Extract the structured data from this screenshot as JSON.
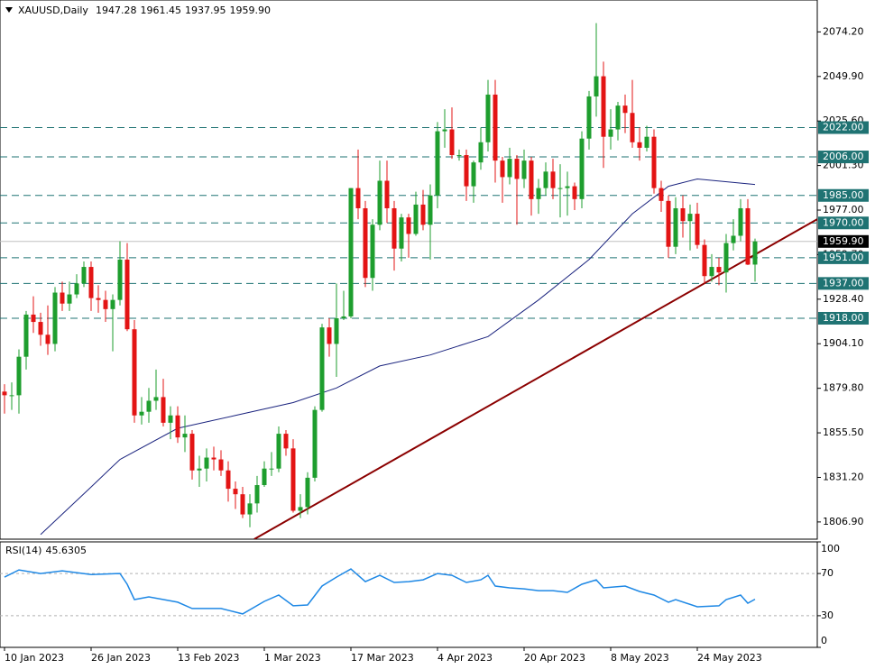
{
  "chart_data": {
    "type": "candlestick",
    "title": "XAUUSD,Daily",
    "title_values": [
      "1947.28",
      "1961.45",
      "1937.95",
      "1959.90"
    ],
    "categories": [
      "10 Jan 2023",
      null,
      null,
      null,
      null,
      null,
      null,
      null,
      null,
      null,
      null,
      null,
      "26 Jan 2023",
      null,
      null,
      null,
      null,
      null,
      null,
      null,
      null,
      null,
      null,
      null,
      "13 Feb 2023",
      null,
      null,
      null,
      null,
      null,
      null,
      null,
      null,
      null,
      null,
      null,
      "1 Mar 2023",
      null,
      null,
      null,
      null,
      null,
      null,
      null,
      null,
      null,
      null,
      null,
      "17 Mar 2023",
      null,
      null,
      null,
      null,
      null,
      null,
      null,
      null,
      null,
      null,
      null,
      "4 Apr 2023",
      null,
      null,
      null,
      null,
      null,
      null,
      null,
      null,
      null,
      null,
      null,
      "20 Apr 2023",
      null,
      null,
      null,
      null,
      null,
      null,
      null,
      null,
      null,
      null,
      null,
      "8 May 2023",
      null,
      null,
      null,
      null,
      null,
      null,
      null,
      null,
      null,
      null,
      null,
      "24 May 2023",
      null,
      null,
      null,
      null,
      null,
      null,
      null,
      null
    ],
    "open": [
      1878,
      1876,
      1876,
      1897,
      1920,
      1916,
      1909,
      1904,
      1932,
      1926,
      1931,
      1937,
      1946,
      1929,
      1928,
      1923,
      1928,
      1950,
      1912,
      1865,
      1867,
      1873,
      1875,
      1861,
      1865,
      1853,
      1855,
      1835,
      1836,
      1842,
      1841,
      1835,
      1825,
      1822,
      1811,
      1817,
      1827,
      1836,
      1836,
      1855,
      1847,
      1813,
      1815,
      1831,
      1868,
      1913,
      1904,
      1918,
      1919,
      1989,
      1978,
      1940,
      1969,
      1993,
      1978,
      1956,
      1973,
      1964,
      1980,
      1969,
      1985,
      2020,
      2021,
      2007,
      2007,
      1990,
      2003,
      2014,
      2040,
      2004,
      1995,
      2005,
      1994,
      2004,
      1983,
      1989,
      1998,
      1989,
      1989,
      1990,
      1983,
      2016,
      2039,
      2050,
      2017,
      2021,
      2034,
      2030,
      2014,
      2011,
      2017,
      1989,
      1982,
      1957,
      1978,
      1971,
      1975,
      1958,
      1941,
      1946,
      1943,
      1959,
      1963,
      1978,
      1947.28
    ],
    "high": [
      1882,
      1883,
      1901,
      1922,
      1930,
      1921,
      1925,
      1935,
      1938,
      1938,
      1942,
      1949,
      1949,
      1936,
      1933,
      1931,
      1960,
      1959,
      1917,
      1875,
      1880,
      1890,
      1885,
      1870,
      1870,
      1865,
      1857,
      1843,
      1847,
      1848,
      1846,
      1840,
      1829,
      1826,
      1822,
      1832,
      1840,
      1845,
      1859,
      1857,
      1852,
      1822,
      1834,
      1870,
      1915,
      1918,
      1937,
      1933,
      1989,
      2010,
      1982,
      1972,
      2004,
      2004,
      1982,
      1975,
      1975,
      1987,
      1988,
      1991,
      2025,
      2032,
      2033,
      2010,
      2010,
      2004,
      2022,
      2048,
      2048,
      2006,
      2011,
      2007,
      2010,
      2006,
      1994,
      2003,
      2005,
      2002,
      1998,
      1992,
      2020,
      2042,
      2079,
      2058,
      2032,
      2036,
      2040,
      2048,
      2022,
      2023,
      2021,
      1993,
      1985,
      1984,
      1985,
      1980,
      1981,
      1961,
      1953,
      1951,
      1964,
      1972,
      1983,
      1983,
      1961.45
    ],
    "low": [
      1866,
      1868,
      1866,
      1890,
      1910,
      1903,
      1898,
      1900,
      1922,
      1922,
      1929,
      1935,
      1922,
      1921,
      1916,
      1900,
      1925,
      1911,
      1861,
      1860,
      1861,
      1868,
      1859,
      1852,
      1850,
      1845,
      1830,
      1826,
      1829,
      1835,
      1832,
      1818,
      1814,
      1809,
      1804,
      1812,
      1826,
      1832,
      1834,
      1843,
      1812,
      1809,
      1811,
      1829,
      1867,
      1897,
      1886,
      1917,
      1918,
      1972,
      1935,
      1933,
      1966,
      1970,
      1944,
      1949,
      1951,
      1963,
      1966,
      1950,
      1978,
      2011,
      2005,
      2004,
      1982,
      1981,
      1999,
      2009,
      1992,
      1981,
      1991,
      1969,
      1989,
      1974,
      1975,
      1985,
      1983,
      1973,
      1974,
      1977,
      1978,
      2010,
      2028,
      2000,
      2010,
      2015,
      2019,
      2011,
      2004,
      2009,
      1986,
      1976,
      1951,
      1953,
      1962,
      1955,
      1956,
      1937,
      1938,
      1936,
      1932,
      1955,
      1960,
      1947,
      1937.95
    ],
    "close": [
      1876,
      1876,
      1897,
      1920,
      1916,
      1909,
      1904,
      1932,
      1926,
      1931,
      1937,
      1946,
      1929,
      1928,
      1923,
      1928,
      1950,
      1912,
      1865,
      1867,
      1873,
      1875,
      1861,
      1865,
      1853,
      1855,
      1835,
      1836,
      1842,
      1841,
      1835,
      1825,
      1822,
      1811,
      1817,
      1827,
      1836,
      1836,
      1855,
      1847,
      1813,
      1815,
      1831,
      1868,
      1913,
      1904,
      1918,
      1919,
      1989,
      1978,
      1940,
      1969,
      1993,
      1978,
      1956,
      1973,
      1964,
      1980,
      1969,
      1985,
      2020,
      2021,
      2007,
      2007,
      1990,
      2003,
      2014,
      2040,
      2004,
      1995,
      2005,
      1994,
      2004,
      1983,
      1989,
      1998,
      1989,
      1989,
      1990,
      1983,
      2016,
      2039,
      2050,
      2017,
      2021,
      2034,
      2030,
      2014,
      2011,
      2017,
      1989,
      1982,
      1957,
      1978,
      1971,
      1975,
      1958,
      1941,
      1946,
      1943,
      1959,
      1963,
      1978,
      1947.28,
      1959.9
    ],
    "up_color": "#1e9e2e",
    "down_color": "#e31414",
    "xlim": [
      -0.625,
      112.625
    ],
    "ylim": [
      1797.5,
      2091.6
    ],
    "yticks": [
      {
        "value": 2074.2,
        "label": "2074.20"
      },
      {
        "value": 2049.9,
        "label": "2049.90"
      },
      {
        "value": 2025.6,
        "label": "2025.60"
      },
      {
        "value": 2001.3,
        "label": "2001.30"
      },
      {
        "value": 1977,
        "label": "1977.00"
      },
      {
        "value": 1952.7,
        "label": "1952.70"
      },
      {
        "value": 1928.4,
        "label": "1928.40"
      },
      {
        "value": 1904.1,
        "label": "1904.10"
      },
      {
        "value": 1879.8,
        "label": "1879.80"
      },
      {
        "value": 1855.5,
        "label": "1855.50"
      },
      {
        "value": 1831.2,
        "label": "1831.20"
      },
      {
        "value": 1806.9,
        "label": "1806.90"
      }
    ],
    "levels": [
      {
        "value": 2022,
        "label": "2022.00"
      },
      {
        "value": 2006,
        "label": "2006.00"
      },
      {
        "value": 1985,
        "label": "1985.00"
      },
      {
        "value": 1970,
        "label": "1970.00"
      },
      {
        "value": 1951,
        "label": "1951.00"
      },
      {
        "value": 1937,
        "label": "1937.00"
      },
      {
        "value": 1918,
        "label": "1918.00"
      }
    ],
    "level_color": "#1f7373",
    "current_price": {
      "value": 1959.9,
      "label": "1959.90"
    },
    "trendline": {
      "x": [
        34.6,
        112.6
      ],
      "values": [
        1797.5,
        1972
      ],
      "color": "#8b0000"
    },
    "ma": {
      "x": [
        5,
        12,
        16,
        24,
        32,
        40,
        46,
        52,
        59,
        67,
        74,
        81,
        87,
        92,
        96,
        104
      ],
      "values": [
        1800,
        1826,
        1841,
        1858,
        1865,
        1872,
        1880,
        1892,
        1898,
        1908,
        1928,
        1950,
        1975,
        1990,
        1994,
        1991
      ],
      "color": "#1a237e"
    },
    "rsi": {
      "label": "RSI(14)",
      "color": "#1e88e5",
      "x": [
        0,
        2,
        5,
        8,
        12,
        16,
        17,
        18,
        20,
        24,
        26,
        30,
        33,
        36,
        38,
        40,
        42,
        44,
        46,
        48,
        50,
        52,
        54,
        56,
        58,
        60,
        62,
        64,
        66,
        67,
        68,
        70,
        72,
        74,
        76,
        78,
        80,
        82,
        83,
        86,
        88,
        90,
        92,
        93,
        96,
        99,
        100,
        102,
        103,
        104
      ],
      "values": [
        66.6,
        73.4,
        70,
        72.6,
        69.1,
        70,
        59.8,
        45.3,
        47.9,
        42.8,
        36.8,
        36.8,
        31.7,
        43.6,
        49.6,
        39.4,
        40.2,
        58.1,
        66.6,
        74.3,
        62.3,
        68.3,
        61.5,
        62.3,
        64,
        70,
        68.3,
        61.5,
        64,
        68.3,
        58.1,
        56.4,
        55.5,
        53.8,
        53.8,
        52.1,
        59.8,
        64,
        56.4,
        58.1,
        53,
        49.6,
        42.8,
        45.3,
        38.5,
        39.4,
        45.3,
        49.6,
        41.9,
        45.6305
      ],
      "ylim": [
        0,
        100
      ],
      "yticks": [
        100,
        70,
        30,
        0
      ],
      "levels": [
        70,
        30
      ]
    }
  }
}
